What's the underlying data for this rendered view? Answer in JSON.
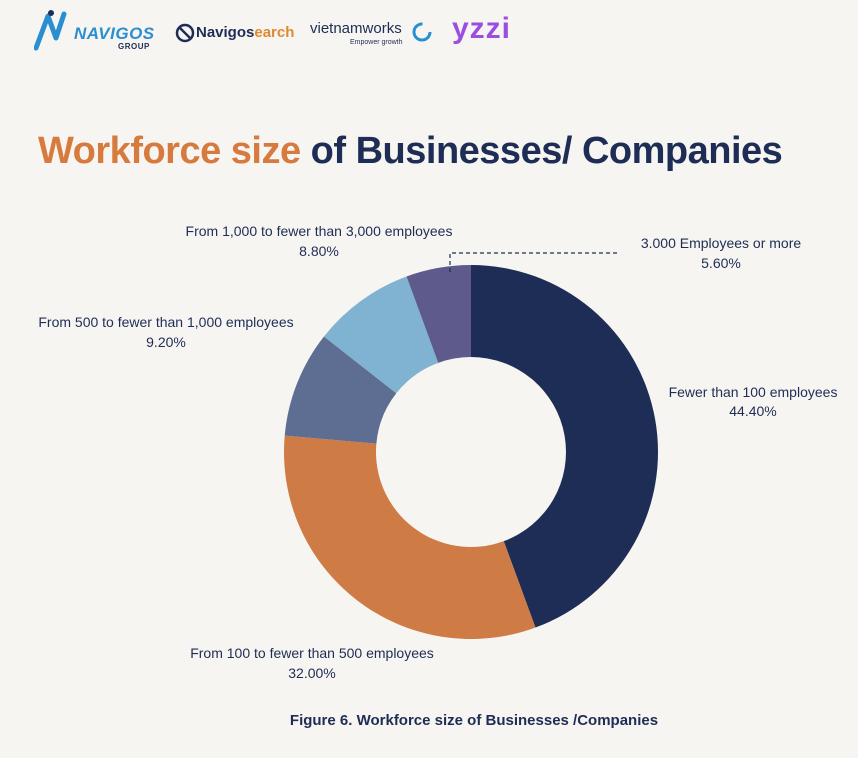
{
  "logos": {
    "navigos": {
      "name": "NAVIGOS",
      "sub": "GROUP"
    },
    "navigos_search": {
      "part1": "Navigos",
      "part2": "earch"
    },
    "vietnamworks": {
      "name": "vietnamworks",
      "tagline": "Empower growth"
    },
    "yuzi": {
      "name": "yzzi"
    }
  },
  "title": {
    "accent": "Workforce size",
    "rest": " of Businesses/ Companies"
  },
  "chart_data": {
    "type": "pie",
    "donut": true,
    "categories": [
      "Fewer than 100 employees",
      "From 100 to fewer than 500 employees",
      "From 500 to fewer than 1,000 employees",
      "From 1,000 to fewer than 3,000 employees",
      "3.000 Employees or more"
    ],
    "values": [
      44.4,
      32.0,
      9.2,
      8.8,
      5.6
    ],
    "value_labels": [
      "44.40%",
      "32.00%",
      "9.20%",
      "8.80%",
      "5.60%"
    ],
    "colors": [
      "#1e2d55",
      "#cf7b45",
      "#5d6e92",
      "#7fb3d1",
      "#5e5a8c"
    ],
    "start_angle": "12 o'clock",
    "direction": "clockwise"
  },
  "caption": "Figure 6. Workforce size of Businesses /Companies"
}
